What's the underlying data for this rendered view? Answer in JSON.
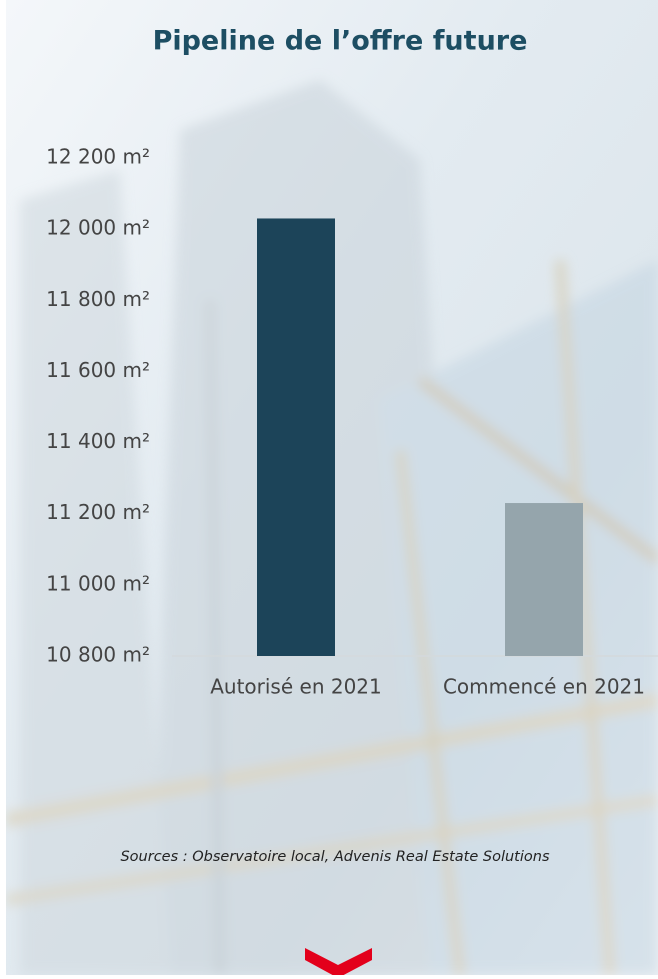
{
  "chart_data": {
    "type": "bar",
    "title": "Pipeline de l’offre future",
    "categories": [
      "Autorisé en 2021",
      "Commencé en 2021"
    ],
    "values": [
      12030,
      11230
    ],
    "colors": [
      "#1c4459",
      "#95a5ac"
    ],
    "ylim": [
      10800,
      12200
    ],
    "yticks": [
      {
        "value": 10800,
        "label": "10 800 m²"
      },
      {
        "value": 11000,
        "label": "11 000 m²"
      },
      {
        "value": 11200,
        "label": "11 200 m²"
      },
      {
        "value": 11400,
        "label": "11 400 m²"
      },
      {
        "value": 11600,
        "label": "11 600 m²"
      },
      {
        "value": 11800,
        "label": "11 800 m²"
      },
      {
        "value": 12000,
        "label": "12 000 m²"
      },
      {
        "value": 12200,
        "label": "12 200 m²"
      }
    ],
    "source": "Sources : Observatoire local, Advenis Real Estate Solutions"
  }
}
